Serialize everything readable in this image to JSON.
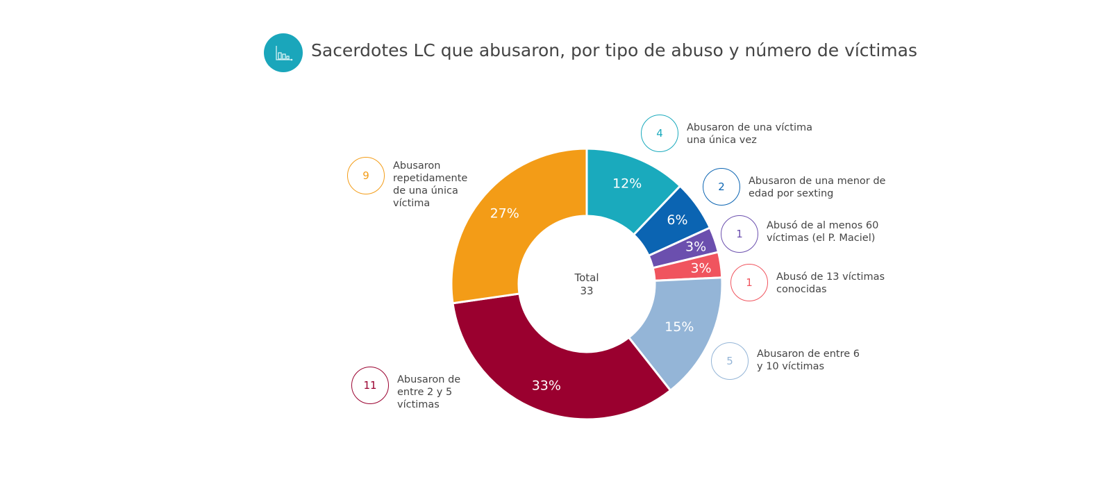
{
  "title": "Sacerdotes LC que abusaron, por tipo de abuso y número de víctimas",
  "title_icon": "bar-chart-icon",
  "chart_data": {
    "type": "pie",
    "donut": true,
    "title": "Sacerdotes LC que abusaron, por tipo de abuso y número de víctimas",
    "center_label": "Total",
    "center_value": "33",
    "start": "top, clockwise",
    "slices": [
      {
        "label": "Abusaron de una víctima una única vez",
        "value": 4,
        "percent_label": "12%",
        "color": "#1aaabd"
      },
      {
        "label": "Abusaron de una menor de edad por sexting",
        "value": 2,
        "percent_label": "6%",
        "color": "#0b64b2"
      },
      {
        "label": "Abusó de al menos 60 víctimas (el P. Maciel)",
        "value": 1,
        "percent_label": "3%",
        "color": "#6b4fae"
      },
      {
        "label": "Abusó de 13 víctimas conocidas",
        "value": 1,
        "percent_label": "3%",
        "color": "#f0545e"
      },
      {
        "label": "Abusaron de entre 6 y 10 víctimas",
        "value": 5,
        "percent_label": "15%",
        "color": "#94b5d7"
      },
      {
        "label": "Abusaron de entre 2 y 5 víctimas",
        "value": 11,
        "percent_label": "33%",
        "color": "#9a002f"
      },
      {
        "label": "Abusaron repetidamente de una única víctima",
        "value": 9,
        "percent_label": "27%",
        "color": "#f39c17"
      }
    ]
  }
}
